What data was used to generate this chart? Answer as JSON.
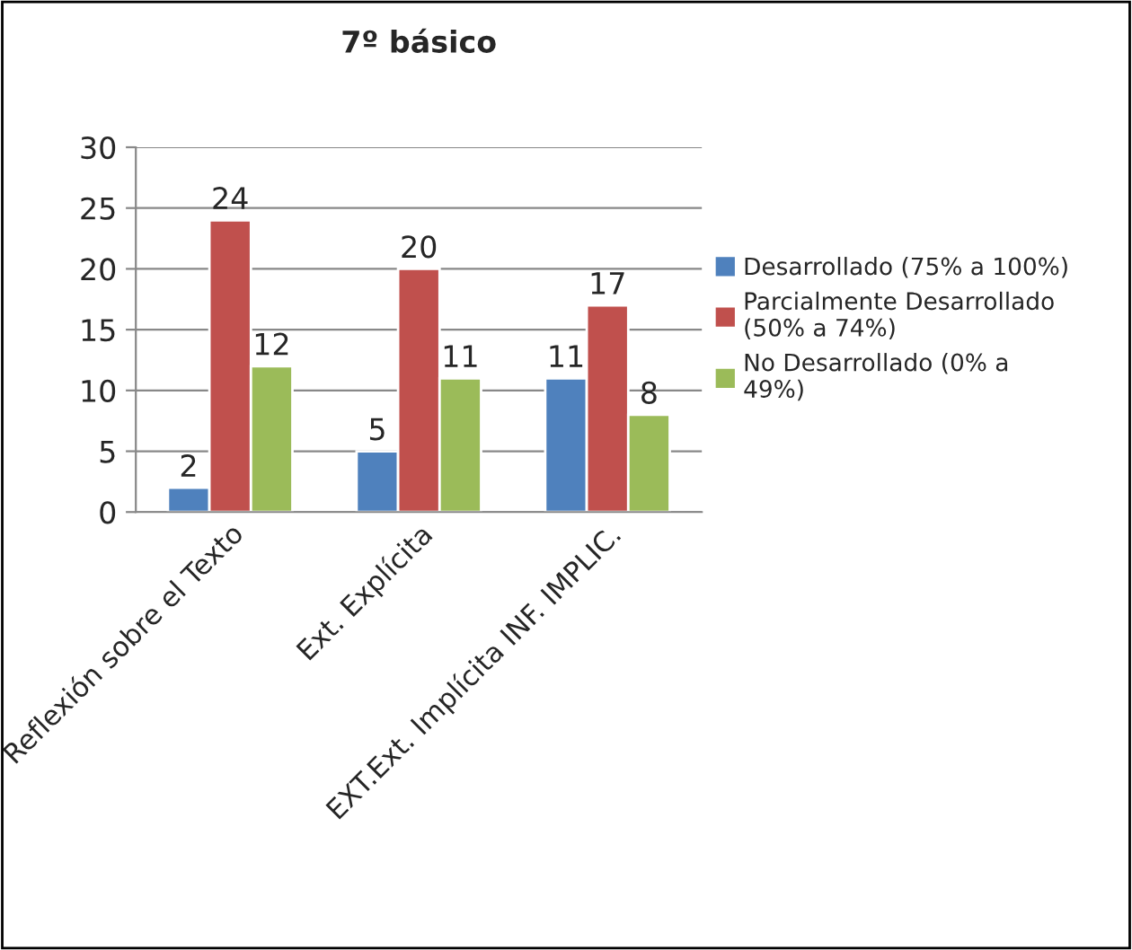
{
  "chart_data": {
    "type": "bar",
    "title": "7º básico",
    "categories": [
      "Reflexión sobre el Texto",
      "Ext. Explícita",
      "EXT.Ext. Implícita INF. IMPLIC."
    ],
    "series": [
      {
        "name": "Desarrollado (75% a 100%)",
        "color": "#4f81bd",
        "values": [
          2,
          5,
          11
        ]
      },
      {
        "name": "Parcialmente Desarrollado\n(50% a 74%)",
        "color": "#c0504d",
        "values": [
          24,
          20,
          17
        ]
      },
      {
        "name": "No Desarrollado (0% a\n49%)",
        "color": "#9bbb59",
        "values": [
          12,
          11,
          8
        ]
      }
    ],
    "ylim": [
      0,
      30
    ],
    "yticks": [
      0,
      5,
      10,
      15,
      20,
      25,
      30
    ],
    "grid": "y",
    "legend": "right",
    "data_labels": true
  }
}
